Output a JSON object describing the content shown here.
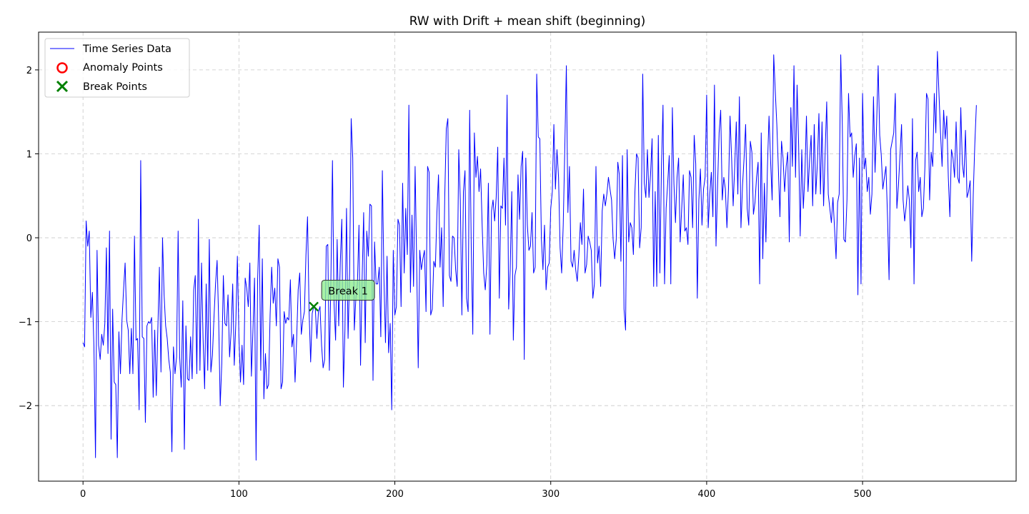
{
  "chart_data": {
    "type": "line",
    "title": "RW with Drift + mean shift (beginning)",
    "xlabel": "",
    "ylabel": "",
    "xlim": [
      -28.5,
      598.5
    ],
    "ylim": [
      -2.9,
      2.45
    ],
    "xticks": [
      0,
      100,
      200,
      300,
      400,
      500
    ],
    "yticks": [
      -2,
      -1,
      0,
      1,
      2
    ],
    "xtick_labels": [
      "0",
      "100",
      "200",
      "300",
      "400",
      "500"
    ],
    "ytick_labels": [
      "−2",
      "−1",
      "0",
      "1",
      "2"
    ],
    "grid": true,
    "legend_position": "top-left",
    "legend": [
      {
        "label": "Time Series Data",
        "marker": "line",
        "color": "#0000ff"
      },
      {
        "label": "Anomaly Points",
        "marker": "circle",
        "color": "#ff0000"
      },
      {
        "label": "Break Points",
        "marker": "x",
        "color": "#008000"
      }
    ],
    "series": [
      {
        "name": "Time Series Data",
        "color": "#0000ff",
        "x_start": 0,
        "values": [
          -1.25,
          -1.3,
          0.2,
          -0.1,
          0.08,
          -0.95,
          -0.65,
          -1.3,
          -2.62,
          -0.15,
          -1.28,
          -1.45,
          -1.15,
          -1.28,
          -1.02,
          -0.12,
          -1.38,
          0.08,
          -2.4,
          -0.85,
          -1.72,
          -1.75,
          -2.62,
          -1.12,
          -1.62,
          -0.98,
          -0.62,
          -0.3,
          -0.98,
          -1.1,
          -1.62,
          -1.08,
          -1.62,
          0.02,
          -1.22,
          -1.2,
          -2.05,
          0.92,
          -1.18,
          -1.2,
          -2.2,
          -1.05,
          -1,
          -1.02,
          -0.95,
          -1.9,
          -1.1,
          -1.88,
          -1.08,
          -0.35,
          -1.6,
          0,
          -0.68,
          -1.05,
          -1.2,
          -1.45,
          -1.6,
          -2.55,
          -1.3,
          -1.62,
          -1.42,
          0.08,
          -1.42,
          -1.78,
          -0.75,
          -2.52,
          -1.05,
          -1.68,
          -1.7,
          -1.18,
          -1.68,
          -0.62,
          -0.45,
          -1.62,
          0.22,
          -1.58,
          -0.3,
          -1.2,
          -1.8,
          -0.55,
          -1.58,
          -0.02,
          -1.6,
          -1.4,
          -0.95,
          -0.55,
          -0.27,
          -0.98,
          -2,
          -1.5,
          -0.45,
          -1.02,
          -1.05,
          -0.68,
          -1.42,
          -1.12,
          -0.55,
          -1.52,
          -1.02,
          -0.22,
          -1.18,
          -1.72,
          -1.28,
          -1.75,
          -0.48,
          -0.6,
          -0.82,
          -0.3,
          -1.65,
          -1.1,
          -0.48,
          -2.65,
          -0.5,
          0.15,
          -1.58,
          -0.25,
          -1.92,
          -1.38,
          -1.8,
          -1.75,
          -0.92,
          -0.35,
          -0.78,
          -0.6,
          -1.05,
          -0.25,
          -0.35,
          -1.8,
          -1.72,
          -0.88,
          -1.02,
          -0.95,
          -0.98,
          -0.5,
          -1.3,
          -1.15,
          -1.72,
          -1.22,
          -0.62,
          -0.42,
          -1.15,
          -0.98,
          -0.88,
          -0.2,
          0.25,
          -0.88,
          -1.48,
          -0.9,
          -0.82,
          -0.85,
          -1.2,
          -0.88,
          -0.82,
          -1.28,
          -1.55,
          -1.45,
          -0.1,
          -0.08,
          -1.58,
          -0.48,
          0.92,
          -0.78,
          -1.22,
          -0.02,
          -1.05,
          -0.3,
          0.22,
          -1.78,
          -1.1,
          0.35,
          -1.2,
          -0.42,
          1.42,
          0.95,
          -1.1,
          -0.72,
          -0.55,
          0.15,
          -1.52,
          -0.5,
          0.3,
          -1.25,
          0.08,
          -0.22,
          0.4,
          0.38,
          -1.7,
          -0.05,
          -0.55,
          -0.55,
          -0.35,
          -1.18,
          0.8,
          -0.48,
          -1.25,
          -0.22,
          -1.37,
          -1.02,
          -2.05,
          -0.15,
          -0.92,
          -0.82,
          0.22,
          0.15,
          -0.82,
          0.65,
          -0.42,
          0.35,
          -0.2,
          1.58,
          -0.65,
          0.27,
          -0.58,
          0.85,
          -0.3,
          -1.55,
          -0.15,
          -0.38,
          -0.25,
          -0.15,
          -0.88,
          0.85,
          0.78,
          -0.92,
          -0.85,
          -0.28,
          -0.35,
          0.3,
          0.75,
          -0.35,
          0.12,
          -0.82,
          0.48,
          1.3,
          1.42,
          -0.45,
          -0.52,
          0.02,
          0,
          -0.38,
          -0.58,
          1.05,
          0.45,
          -0.92,
          0.55,
          0.8,
          -0.72,
          -0.88,
          1.52,
          -0.1,
          -1.15,
          1.25,
          0.72,
          0.97,
          0.55,
          0.82,
          0.15,
          -0.42,
          -0.62,
          -0.32,
          0.65,
          -1.15,
          0.32,
          0.45,
          0.2,
          0.48,
          1.08,
          -0.72,
          0.38,
          0.35,
          0.95,
          0.15,
          1.7,
          -0.85,
          -0.38,
          0.55,
          -1.22,
          -0.45,
          -0.35,
          0.75,
          0.22,
          0.85,
          1.03,
          -1.45,
          0.95,
          0.15,
          -0.15,
          -0.1,
          0.3,
          -0.42,
          -0.35,
          1.95,
          1.2,
          1.18,
          -0.02,
          -0.38,
          0.15,
          -0.62,
          -0.35,
          -0.3,
          0.35,
          0.55,
          1.35,
          0.58,
          1.05,
          0.72,
          -0.12,
          -0.42,
          0.15,
          1.05,
          2.05,
          0.3,
          0.85,
          -0.28,
          -0.35,
          -0.15,
          -0.38,
          -0.52,
          -0.22,
          0.18,
          -0.08,
          0.58,
          -0.42,
          -0.32,
          0.02,
          -0.05,
          -0.15,
          -0.72,
          -0.55,
          0.85,
          -0.3,
          -0.1,
          -0.58,
          0.32,
          0.52,
          0.38,
          0.52,
          0.72,
          0.58,
          0.45,
          -0.02,
          -0.25,
          -0.02,
          0.9,
          0.75,
          -0.28,
          0.98,
          -0.85,
          -1.1,
          1.05,
          -0.05,
          0.18,
          0.12,
          -0.2,
          0.55,
          1,
          0.95,
          -0.12,
          0.12,
          1.95,
          0.65,
          0.48,
          1.05,
          0.48,
          0.75,
          1.18,
          -0.58,
          0.55,
          -0.58,
          1.22,
          -0.42,
          0.85,
          1.58,
          -0.55,
          0.35,
          0.65,
          0.98,
          -0.55,
          1.55,
          0.65,
          0.18,
          0.72,
          0.95,
          -0.05,
          0.35,
          0.75,
          0.08,
          0.12,
          -0.08,
          0.8,
          0.72,
          0.12,
          1.22,
          0.88,
          -0.72,
          0.45,
          0.82,
          0.15,
          0.58,
          0.72,
          1.7,
          0.12,
          0.52,
          0.78,
          0.25,
          1.82,
          -0.1,
          0.62,
          1.25,
          1.52,
          0.45,
          0.72,
          0.58,
          0.12,
          0.58,
          1.45,
          0.95,
          0.38,
          0.85,
          1.38,
          0.52,
          1.68,
          0.12,
          0.62,
          0.95,
          1.35,
          0.35,
          0.15,
          1.15,
          1.02,
          0.28,
          0.42,
          0.72,
          0.9,
          -0.55,
          1.25,
          -0.25,
          0.65,
          -0.05,
          0.85,
          1.45,
          0.92,
          0.45,
          2.18,
          1.75,
          1.35,
          0.82,
          0.25,
          1.15,
          0.95,
          0.55,
          0.85,
          1.02,
          -0.05,
          1.55,
          0.85,
          2.05,
          0.72,
          1.82,
          1.1,
          0.02,
          1.05,
          0.35,
          0.75,
          1.45,
          0.55,
          0.92,
          1.22,
          0.38,
          1.35,
          0.52,
          0.88,
          1.48,
          0.52,
          1.38,
          0.38,
          1.02,
          1.62,
          0.52,
          0.35,
          0.18,
          0.48,
          0.12,
          -0.25,
          0.42,
          0.52,
          2.18,
          1.35,
          -0.02,
          -0.05,
          0.45,
          1.72,
          1.2,
          1.25,
          0.72,
          0.98,
          1.12,
          -0.68,
          0.95,
          -0.55,
          1.72,
          0.82,
          0.95,
          0.55,
          0.72,
          0.28,
          0.52,
          1.68,
          0.78,
          1.35,
          2.05,
          1.22,
          0.98,
          0.58,
          0.72,
          0.85,
          0.25,
          -0.5,
          1.05,
          1.15,
          1.25,
          1.72,
          0.35,
          0.62,
          0.98,
          1.35,
          0.45,
          0.2,
          0.38,
          0.62,
          0.45,
          -0.12,
          1.42,
          -0.55,
          0.92,
          1.02,
          0.55,
          0.72,
          0.25,
          0.35,
          0.85,
          1.72,
          1.65,
          0.45,
          1.02,
          0.85,
          1.72,
          1.25,
          2.22,
          1.72,
          1.25,
          0.85,
          1.52,
          1.18,
          1.45,
          0.72,
          0.25,
          1.05,
          0.95,
          0.72,
          1.38,
          0.72,
          0.65,
          1.55,
          0.88,
          0.72,
          1.28,
          0.48,
          0.55,
          0.68,
          -0.28,
          0.52,
          1.12,
          1.58
        ]
      }
    ],
    "anomaly_points": [],
    "break_points": [
      {
        "x": 148,
        "y": -0.82,
        "label": "Break 1"
      }
    ]
  }
}
